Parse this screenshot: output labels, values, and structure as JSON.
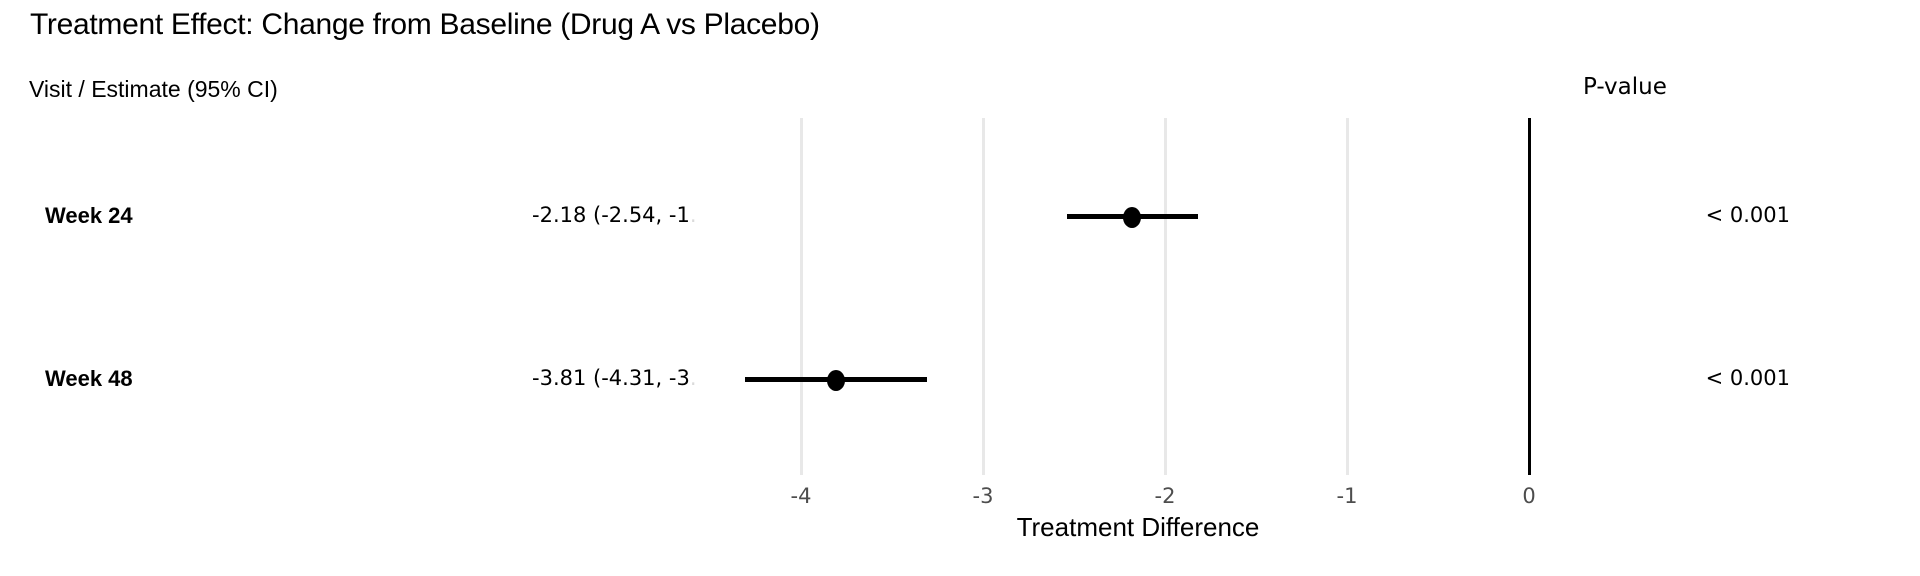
{
  "title": "Treatment Effect: Change from Baseline (Drug A vs Placebo)",
  "column_headers": {
    "left": "Visit / Estimate (95% CI)",
    "right": "P-value"
  },
  "colors": {
    "text": "#000000",
    "tick_label": "#4d4d4d",
    "gridline": "#e8e8e8",
    "reference_line": "#000000",
    "marker": "#000000"
  },
  "chart_data": {
    "type": "scatter",
    "subtype": "forest-plot",
    "title": "Treatment Effect: Change from Baseline (Drug A vs Placebo)",
    "xlabel": "Treatment Difference",
    "x_ticks": [
      -4,
      -3,
      -2,
      -1,
      0
    ],
    "xlim": [
      -4.45,
      0.17
    ],
    "reference_line_x": 0,
    "grid": "vertical-only",
    "legend": "none",
    "rows": [
      {
        "visit": "Week 24",
        "estimate": -2.18,
        "ci_low": -2.54,
        "ci_high": -1.82,
        "estimate_label_visible": "-2.18 (-2.54, -1",
        "estimate_label_clipped": ".",
        "p_value": "< 0.001"
      },
      {
        "visit": "Week 48",
        "estimate": -3.81,
        "ci_low": -4.31,
        "ci_high": -3.31,
        "estimate_label_visible": "-3.81 (-4.31, -3",
        "estimate_label_clipped": ".",
        "p_value": "< 0.001"
      }
    ]
  }
}
